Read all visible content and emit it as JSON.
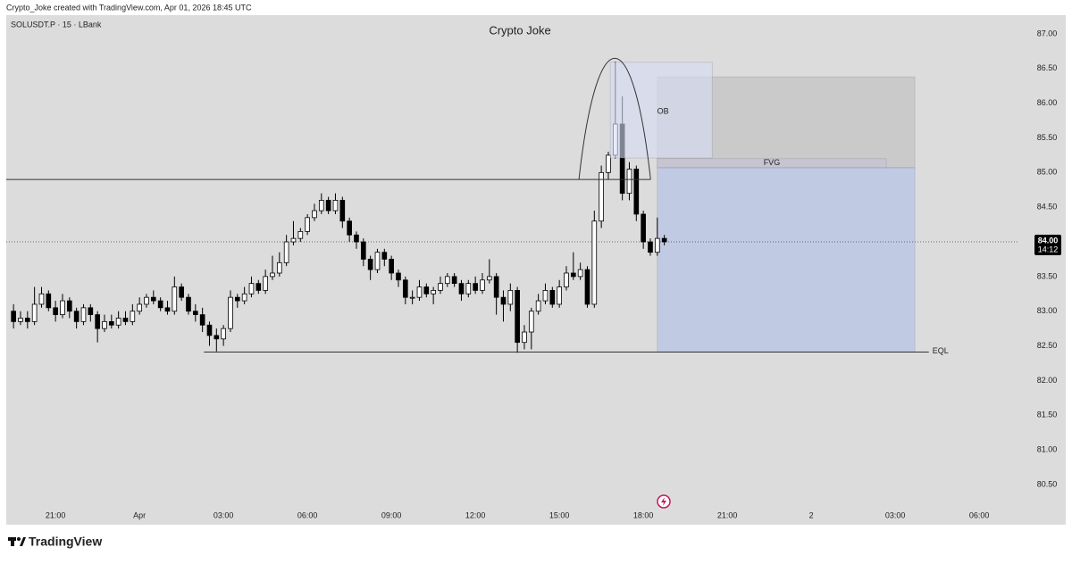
{
  "header": "Crypto_Joke created with TradingView.com, Apr 01, 2026 18:45 UTC",
  "footer": "TradingView",
  "chart_data": {
    "type": "candlestick",
    "title": "Crypto Joke",
    "symbol": "SOLUSDT.P · 15 · LBank",
    "up_color": "#ffffff",
    "down_color": "#000000",
    "xlim": [
      -4.76,
      31.4
    ],
    "ylim": [
      79.92,
      87.27
    ],
    "xticks": [
      {
        "value": -3,
        "label": "21:00"
      },
      {
        "value": 0,
        "label": "Apr"
      },
      {
        "value": 3,
        "label": "03:00"
      },
      {
        "value": 6,
        "label": "06:00"
      },
      {
        "value": 9,
        "label": "09:00"
      },
      {
        "value": 12,
        "label": "12:00"
      },
      {
        "value": 15,
        "label": "15:00"
      },
      {
        "value": 18,
        "label": "18:00"
      },
      {
        "value": 21,
        "label": "21:00"
      },
      {
        "value": 24,
        "label": "2"
      },
      {
        "value": 27,
        "label": "03:00"
      },
      {
        "value": 30,
        "label": "06:00"
      }
    ],
    "yticks": [
      {
        "value": 80.5,
        "label": "80.50"
      },
      {
        "value": 81,
        "label": "81.00"
      },
      {
        "value": 81.5,
        "label": "81.50"
      },
      {
        "value": 82,
        "label": "82.00"
      },
      {
        "value": 82.5,
        "label": "82.50"
      },
      {
        "value": 83,
        "label": "83.00"
      },
      {
        "value": 83.5,
        "label": "83.50"
      },
      {
        "value": 84,
        "label": "84.00"
      },
      {
        "value": 84.5,
        "label": "84.50"
      },
      {
        "value": 85,
        "label": "85.00"
      },
      {
        "value": 85.5,
        "label": "85.50"
      },
      {
        "value": 86,
        "label": "86.00"
      },
      {
        "value": 86.5,
        "label": "86.50"
      },
      {
        "value": 87,
        "label": "87.00"
      }
    ],
    "x": [
      -4.5,
      -4.25,
      -4,
      -3.75,
      -3.5,
      -3.25,
      -3,
      -2.75,
      -2.5,
      -2.25,
      -2,
      -1.75,
      -1.5,
      -1.25,
      -1,
      -0.75,
      -0.5,
      -0.25,
      0,
      0.25,
      0.5,
      0.75,
      1,
      1.25,
      1.5,
      1.75,
      2,
      2.25,
      2.5,
      2.75,
      3,
      3.25,
      3.5,
      3.75,
      4,
      4.25,
      4.5,
      4.75,
      5,
      5.25,
      5.5,
      5.75,
      6,
      6.25,
      6.5,
      6.75,
      7,
      7.25,
      7.5,
      7.75,
      8,
      8.25,
      8.5,
      8.75,
      9,
      9.25,
      9.5,
      9.75,
      10,
      10.25,
      10.5,
      10.75,
      11,
      11.25,
      11.5,
      11.75,
      12,
      12.25,
      12.5,
      12.75,
      13,
      13.25,
      13.5,
      13.75,
      14,
      14.25,
      14.5,
      14.75,
      15,
      15.25,
      15.5,
      15.75,
      16,
      16.25,
      16.5,
      16.75,
      17,
      17.25,
      17.5,
      17.75,
      18,
      18.25,
      18.5,
      18.75
    ],
    "open": [
      83.0,
      82.85,
      82.9,
      82.85,
      83.1,
      83.25,
      83.05,
      82.95,
      83.15,
      83.0,
      82.85,
      83.05,
      82.95,
      82.75,
      82.85,
      82.8,
      82.9,
      82.85,
      83.0,
      83.1,
      83.2,
      83.15,
      83.05,
      83.0,
      83.35,
      83.2,
      83.0,
      82.95,
      82.8,
      82.65,
      82.6,
      82.75,
      83.2,
      83.15,
      83.25,
      83.4,
      83.3,
      83.5,
      83.55,
      83.7,
      84.0,
      84.05,
      84.15,
      84.35,
      84.45,
      84.6,
      84.45,
      84.6,
      84.3,
      84.1,
      84.0,
      83.75,
      83.6,
      83.85,
      83.75,
      83.55,
      83.45,
      83.2,
      83.2,
      83.35,
      83.25,
      83.3,
      83.4,
      83.5,
      83.4,
      83.25,
      83.4,
      83.3,
      83.45,
      83.5,
      83.2,
      83.1,
      83.3,
      82.55,
      82.7,
      83.0,
      83.15,
      83.3,
      83.1,
      83.35,
      83.55,
      83.5,
      83.6,
      83.1,
      84.3,
      85.0,
      85.25,
      85.7,
      84.7,
      85.05,
      84.4,
      84.0,
      83.85,
      84.05
    ],
    "high": [
      83.1,
      83.0,
      83.0,
      83.35,
      83.35,
      83.3,
      83.15,
      83.25,
      83.2,
      83.05,
      83.1,
      83.1,
      83.0,
      82.95,
      82.95,
      83.0,
      83.0,
      83.1,
      83.2,
      83.25,
      83.3,
      83.2,
      83.15,
      83.5,
      83.4,
      83.25,
      83.1,
      83.05,
      82.85,
      82.75,
      82.8,
      83.3,
      83.25,
      83.35,
      83.5,
      83.45,
      83.6,
      83.8,
      83.85,
      84.1,
      84.3,
      84.2,
      84.4,
      84.55,
      84.7,
      84.65,
      84.7,
      84.65,
      84.35,
      84.15,
      84.05,
      83.8,
      83.9,
      83.9,
      83.8,
      83.6,
      83.5,
      83.3,
      83.45,
      83.4,
      83.35,
      83.5,
      83.55,
      83.55,
      83.45,
      83.45,
      83.5,
      83.55,
      83.75,
      83.55,
      83.3,
      83.4,
      83.35,
      82.8,
      83.05,
      83.25,
      83.4,
      83.35,
      83.45,
      83.65,
      83.85,
      83.7,
      83.65,
      84.45,
      85.1,
      85.3,
      86.6,
      86.1,
      85.15,
      85.1,
      84.45,
      84.05,
      84.35,
      84.1
    ],
    "low": [
      82.75,
      82.8,
      82.75,
      82.8,
      83.05,
      83.0,
      82.85,
      82.9,
      82.9,
      82.75,
      82.8,
      82.85,
      82.55,
      82.7,
      82.75,
      82.75,
      82.8,
      82.8,
      82.95,
      83.05,
      83.1,
      83.0,
      82.95,
      82.95,
      83.15,
      82.95,
      82.85,
      82.7,
      82.5,
      82.42,
      82.5,
      82.7,
      83.05,
      83.1,
      83.2,
      83.25,
      83.25,
      83.45,
      83.5,
      83.65,
      83.95,
      84.0,
      84.1,
      84.3,
      84.4,
      84.4,
      84.4,
      84.2,
      84.0,
      83.9,
      83.65,
      83.45,
      83.55,
      83.65,
      83.45,
      83.35,
      83.1,
      83.1,
      83.15,
      83.2,
      83.1,
      83.25,
      83.35,
      83.35,
      83.15,
      83.2,
      83.25,
      83.25,
      83.4,
      82.95,
      82.85,
      83.0,
      82.4,
      82.45,
      82.45,
      82.95,
      83.1,
      83.05,
      83.05,
      83.3,
      83.45,
      83.45,
      83.05,
      83.05,
      84.2,
      84.9,
      85.2,
      84.6,
      84.6,
      84.3,
      83.9,
      83.8,
      83.8,
      83.95
    ],
    "close": [
      82.85,
      82.9,
      82.85,
      83.1,
      83.25,
      83.05,
      82.95,
      83.15,
      83.0,
      82.85,
      83.05,
      82.95,
      82.75,
      82.85,
      82.8,
      82.9,
      82.85,
      83.0,
      83.1,
      83.2,
      83.15,
      83.05,
      83.0,
      83.35,
      83.2,
      83.0,
      82.95,
      82.8,
      82.65,
      82.6,
      82.75,
      83.2,
      83.15,
      83.25,
      83.4,
      83.3,
      83.5,
      83.55,
      83.7,
      84.0,
      84.05,
      84.15,
      84.35,
      84.45,
      84.6,
      84.45,
      84.6,
      84.3,
      84.1,
      84.0,
      83.75,
      83.6,
      83.85,
      83.75,
      83.55,
      83.45,
      83.2,
      83.2,
      83.35,
      83.25,
      83.3,
      83.4,
      83.5,
      83.4,
      83.25,
      83.4,
      83.3,
      83.45,
      83.5,
      83.2,
      83.1,
      83.3,
      82.55,
      82.7,
      83.0,
      83.15,
      83.3,
      83.1,
      83.35,
      83.55,
      83.5,
      83.6,
      83.1,
      84.3,
      85.0,
      85.25,
      85.7,
      84.7,
      85.05,
      84.4,
      84.0,
      83.85,
      84.05,
      84.0
    ],
    "last_price": {
      "value": 84,
      "label": "84.00"
    },
    "countdown": "14:12",
    "annotations": [
      {
        "type": "box",
        "x": [
          18.5,
          27.7
        ],
        "y": [
          85.07,
          86.38
        ],
        "color": "rgba(170,170,170,0.35)"
      },
      {
        "type": "box",
        "x": [
          18.5,
          27.7
        ],
        "y": [
          82.41,
          85.07
        ],
        "color": "rgba(160,180,235,0.45)"
      },
      {
        "type": "box",
        "x": [
          16.82,
          20.46
        ],
        "y": [
          85.21,
          86.59
        ],
        "color": "rgba(215,222,245,0.6)",
        "label": "OB"
      },
      {
        "type": "box",
        "x": [
          18.5,
          26.68
        ],
        "y": [
          85.07,
          85.2
        ],
        "color": "rgba(200,195,215,0.7)",
        "label": "FVG"
      },
      {
        "type": "line",
        "x": [
          -4.76,
          18.26
        ],
        "y": [
          84.9,
          84.9
        ],
        "color": "#333333"
      },
      {
        "type": "line",
        "x": [
          2.3,
          28.2
        ],
        "y": [
          82.41,
          82.41
        ],
        "color": "#333333",
        "label": "EQL"
      },
      {
        "type": "arc",
        "x": [
          15.7,
          18.26
        ],
        "y": [
          84.9,
          86.65
        ],
        "color": "#333333"
      }
    ]
  }
}
